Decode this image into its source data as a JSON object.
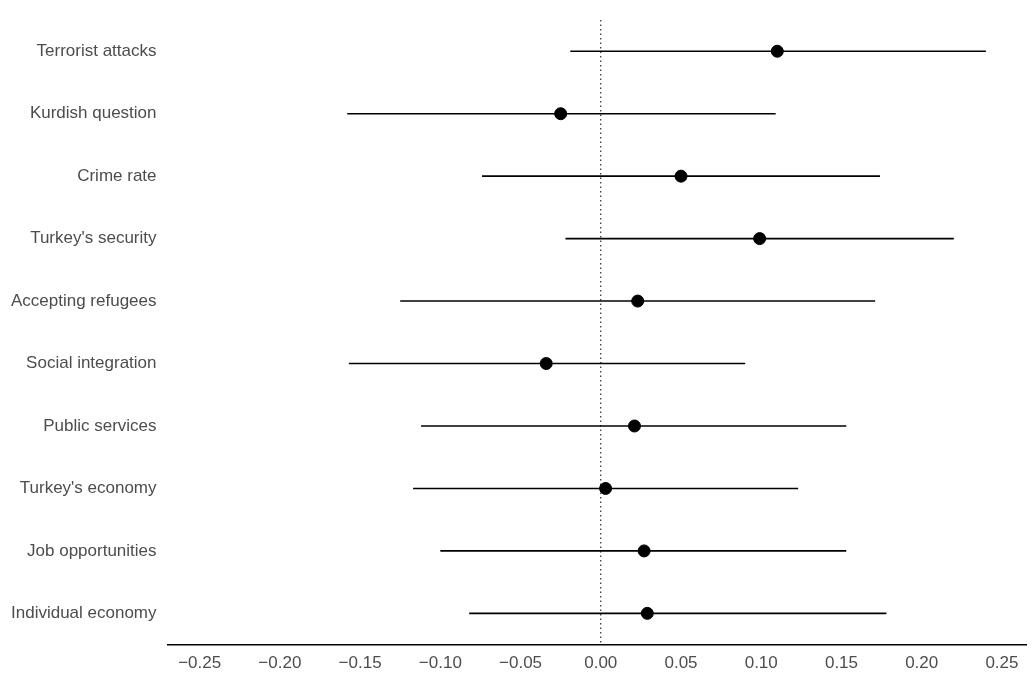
{
  "chart_data": {
    "type": "scatter",
    "orientation": "horizontal",
    "marker": "circle",
    "grid": false,
    "legend": false,
    "categories": [
      "Terrorist attacks",
      "Kurdish question",
      "Crime rate",
      "Turkey's security",
      "Accepting refugees",
      "Social integration",
      "Public services",
      "Turkey's economy",
      "Job opportunities",
      "Individual economy"
    ],
    "values": [
      0.11,
      -0.025,
      0.05,
      0.099,
      0.023,
      -0.034,
      0.021,
      0.003,
      0.027,
      0.029
    ],
    "errors": [
      [
        -0.019,
        0.24
      ],
      [
        -0.158,
        0.109
      ],
      [
        -0.074,
        0.174
      ],
      [
        -0.022,
        0.22
      ],
      [
        -0.125,
        0.171
      ],
      [
        -0.157,
        0.09
      ],
      [
        -0.112,
        0.153
      ],
      [
        -0.117,
        0.123
      ],
      [
        -0.1,
        0.153
      ],
      [
        -0.082,
        0.178
      ]
    ],
    "color": "#000000",
    "xlim": [
      -0.27,
      0.265
    ],
    "xticks": [
      {
        "value": -0.25,
        "label": "−0.25"
      },
      {
        "value": -0.2,
        "label": "−0.20"
      },
      {
        "value": -0.15,
        "label": "−0.15"
      },
      {
        "value": -0.1,
        "label": "−0.10"
      },
      {
        "value": -0.05,
        "label": "−0.05"
      },
      {
        "value": 0,
        "label": "0.00"
      },
      {
        "value": 0.05,
        "label": "0.05"
      },
      {
        "value": 0.1,
        "label": "0.10"
      },
      {
        "value": 0.15,
        "label": "0.15"
      },
      {
        "value": 0.2,
        "label": "0.20"
      },
      {
        "value": 0.25,
        "label": "0.25"
      }
    ],
    "ref_lines": [
      {
        "axis": "x",
        "value": 0,
        "line_style": "dotted",
        "color": "#000000"
      }
    ]
  }
}
